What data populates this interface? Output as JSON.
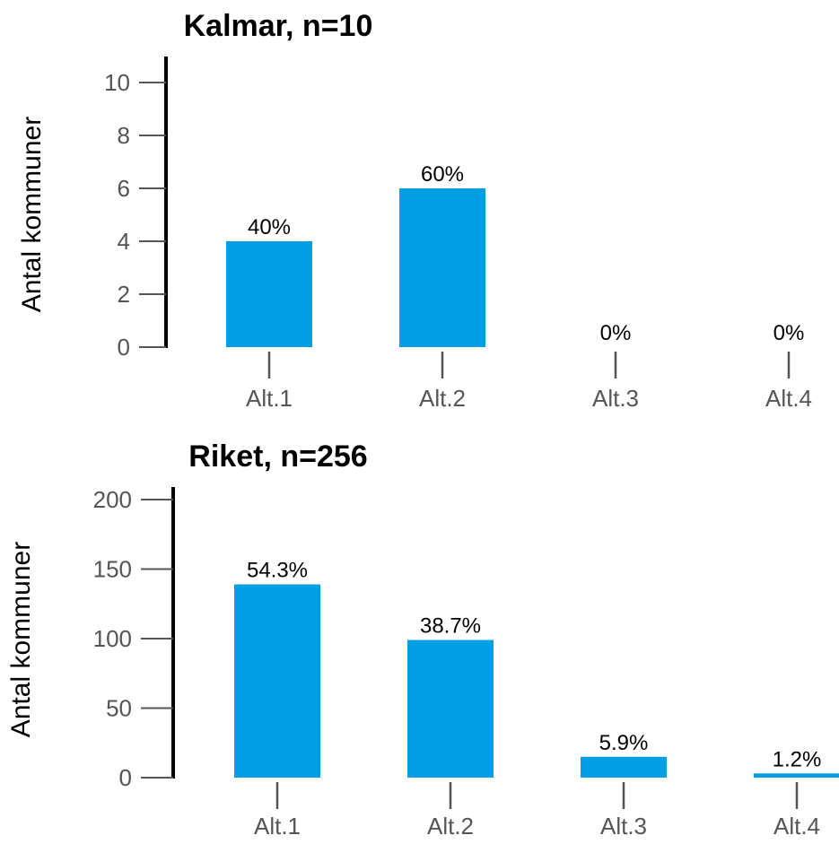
{
  "accent_color": "#009fe3",
  "chart_data": [
    {
      "type": "bar",
      "title": "Kalmar, n=10",
      "ylabel": "Antal kommuner",
      "xlabel": "",
      "categories": [
        "Alt.1",
        "Alt.2",
        "Alt.3",
        "Alt.4"
      ],
      "values": [
        4,
        6,
        0,
        0
      ],
      "data_labels": [
        "40%",
        "60%",
        "0%",
        "0%"
      ],
      "ylim": [
        0,
        10
      ],
      "yticks": [
        "0",
        "2",
        "4",
        "6",
        "8",
        "10"
      ],
      "grid": false,
      "color": "#009fe3"
    },
    {
      "type": "bar",
      "title": "Riket, n=256",
      "ylabel": "Antal kommuner",
      "xlabel": "",
      "categories": [
        "Alt.1",
        "Alt.2",
        "Alt.3",
        "Alt.4"
      ],
      "values": [
        139,
        99,
        15,
        3
      ],
      "data_labels": [
        "54.3%",
        "38.7%",
        "5.9%",
        "1.2%"
      ],
      "ylim": [
        0,
        200
      ],
      "yticks": [
        "0",
        "50",
        "100",
        "150",
        "200"
      ],
      "grid": false,
      "color": "#009fe3"
    }
  ]
}
